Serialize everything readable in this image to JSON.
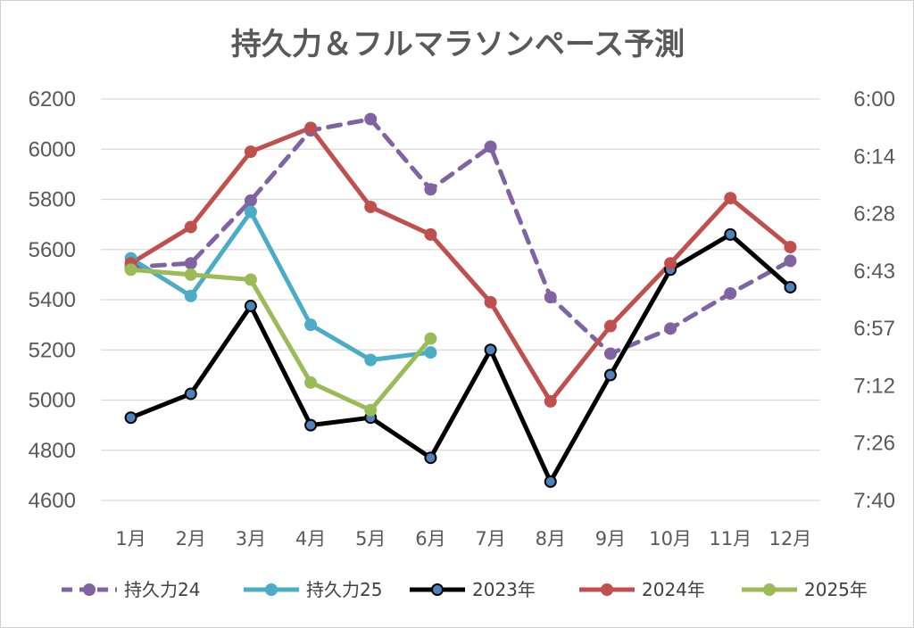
{
  "chart_data": {
    "type": "line",
    "title": "持久力＆フルマラソンペース予測",
    "categories": [
      "1月",
      "2月",
      "3月",
      "4月",
      "5月",
      "6月",
      "7月",
      "8月",
      "9月",
      "10月",
      "11月",
      "12月"
    ],
    "ylim": [
      4600,
      6200
    ],
    "yticks": [
      "6200",
      "6000",
      "5800",
      "5600",
      "5400",
      "5200",
      "5000",
      "4800",
      "4600"
    ],
    "y2ticks": [
      "6:00",
      "6:14",
      "6:28",
      "6:43",
      "6:57",
      "7:12",
      "7:26",
      "7:40"
    ],
    "grid": true,
    "legend_position": "bottom",
    "series": [
      {
        "name": "持久力24",
        "color": "#8064a2",
        "style": "dashed",
        "marker_fill": "#8064a2",
        "marker_stroke": "#8064a2",
        "values": [
          5530,
          5545,
          5795,
          6075,
          6120,
          5840,
          6010,
          5410,
          5185,
          5285,
          5425,
          5555
        ]
      },
      {
        "name": "持久力25",
        "color": "#4bacc6",
        "style": "solid",
        "marker_fill": "#4bacc6",
        "marker_stroke": "#4bacc6",
        "values": [
          5565,
          5415,
          5750,
          5300,
          5160,
          5190,
          null,
          null,
          null,
          null,
          null,
          null
        ]
      },
      {
        "name": "2023年",
        "color": "#000000",
        "style": "solid",
        "marker_fill": "#4f81bd",
        "marker_stroke": "#000000",
        "values": [
          4930,
          5025,
          5375,
          4900,
          4930,
          4770,
          5200,
          4675,
          5100,
          5520,
          5660,
          5450
        ]
      },
      {
        "name": "2024年",
        "color": "#c0504d",
        "style": "solid",
        "marker_fill": "#c0504d",
        "marker_stroke": "#c0504d",
        "values": [
          5545,
          5690,
          5990,
          6085,
          5770,
          5660,
          5390,
          4995,
          5295,
          5545,
          5805,
          5610
        ]
      },
      {
        "name": "2025年",
        "color": "#9bbb59",
        "style": "solid",
        "marker_fill": "#9bbb59",
        "marker_stroke": "#9bbb59",
        "values": [
          5520,
          5500,
          5480,
          5070,
          4960,
          5245,
          null,
          null,
          null,
          null,
          null,
          null
        ]
      }
    ]
  }
}
